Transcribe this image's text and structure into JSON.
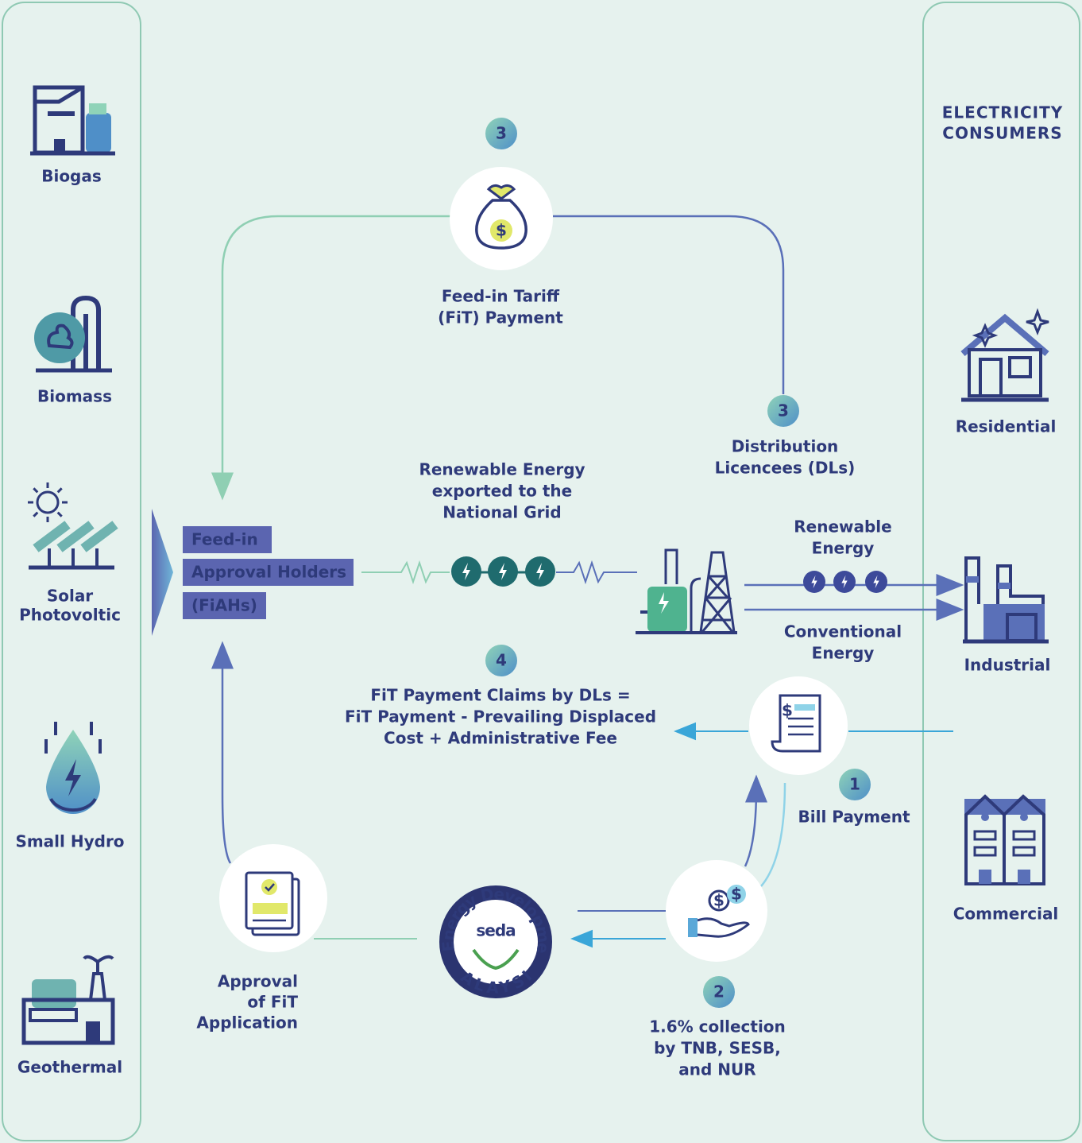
{
  "sources": [
    {
      "lines": [
        "Biogas"
      ]
    },
    {
      "lines": [
        "Biomass"
      ]
    },
    {
      "lines": [
        "Solar",
        "Photovoltic"
      ]
    },
    {
      "lines": [
        "Small Hydro"
      ]
    },
    {
      "lines": [
        "Geothermal"
      ]
    }
  ],
  "consumers": {
    "title": [
      "ELECTRICITY",
      "CONSUMERS"
    ],
    "items": [
      {
        "lines": [
          "Residential"
        ]
      },
      {
        "lines": [
          "Industrial"
        ]
      },
      {
        "lines": [
          "Commercial"
        ]
      }
    ]
  },
  "fiah": [
    "Feed-in",
    "Approval Holders",
    "(FiAHs)"
  ],
  "flows": {
    "fit_payment": {
      "badge": "3",
      "lines": [
        "Feed-in Tariff",
        "(FiT) Payment"
      ]
    },
    "distribution": {
      "badge": "3",
      "lines": [
        "Distribution",
        "Licencees (DLs)"
      ]
    },
    "export": {
      "lines": [
        "Renewable Energy",
        "exported to the",
        "National Grid"
      ]
    },
    "renewable": {
      "lines": [
        "Renewable",
        "Energy"
      ]
    },
    "conventional": {
      "lines": [
        "Conventional",
        "Energy"
      ]
    },
    "claims": {
      "badge": "4",
      "lines": [
        "FiT Payment Claims by DLs =",
        "FiT Payment - Prevailing Displaced",
        "Cost + Administrative Fee"
      ]
    },
    "bill": {
      "badge": "1",
      "lines": [
        "Bill Payment"
      ]
    },
    "collection": {
      "badge": "2",
      "lines": [
        "1.6% collection",
        "by TNB, SESB,",
        "and NUR"
      ]
    },
    "approval": {
      "lines": [
        "Approval",
        "of FiT",
        "Application"
      ]
    }
  },
  "logo": {
    "name": "seda",
    "ring": "Sustainable Energy Development Authority",
    "country": "MALAYSIA"
  },
  "icon_symbol": "$"
}
